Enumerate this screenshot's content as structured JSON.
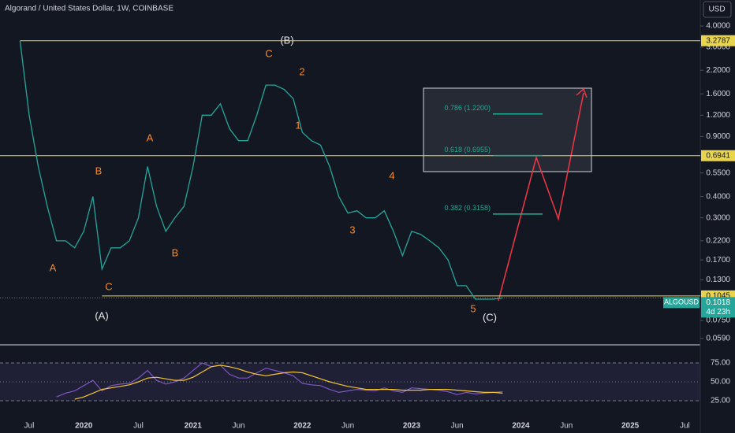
{
  "header": {
    "title": "Algorand / United States Dollar, 1W, COINBASE",
    "currency": "USD",
    "countdown": "4d 23h"
  },
  "annotations": [
    "(B)",
    "C",
    "2",
    "1",
    "A",
    "B",
    "A",
    "B",
    "C",
    "(A)",
    "4",
    "3",
    "5",
    "(C)"
  ],
  "fib_levels": [
    {
      "label": "0.786 (1.2200)",
      "price": 1.22
    },
    {
      "label": "0.618 (0.6955)",
      "price": 0.6955
    },
    {
      "label": "0.382 (0.3158)",
      "price": 0.3158
    }
  ],
  "chart_data": [
    {
      "type": "line",
      "log_scale": true,
      "grid": false,
      "series": [
        {
          "name": "ALGOUSD",
          "color": "#26a69a",
          "values": [
            3.28,
            1.2,
            0.6,
            0.35,
            0.22,
            0.22,
            0.2,
            0.25,
            0.4,
            0.15,
            0.2,
            0.2,
            0.22,
            0.3,
            0.6,
            0.35,
            0.25,
            0.3,
            0.35,
            0.6,
            1.2,
            1.2,
            1.4,
            1.0,
            0.85,
            0.85,
            1.2,
            1.8,
            1.8,
            1.7,
            1.5,
            0.95,
            0.85,
            0.8,
            0.6,
            0.4,
            0.32,
            0.33,
            0.3,
            0.3,
            0.33,
            0.25,
            0.18,
            0.25,
            0.24,
            0.22,
            0.2,
            0.17,
            0.12,
            0.12,
            0.1,
            0.1,
            0.1,
            0.1018
          ]
        }
      ],
      "levels": [
        3.2787,
        0.6941,
        0.1045
      ],
      "level_color": "#e8d44d",
      "xlim": [
        -2.2,
        74.7
      ],
      "xticks": [
        {
          "value": 1,
          "label": "Jul"
        },
        {
          "value": 7,
          "label": "2020"
        },
        {
          "value": 13,
          "label": "Jul"
        },
        {
          "value": 19,
          "label": "2021"
        },
        {
          "value": 24,
          "label": "Jun"
        },
        {
          "value": 31,
          "label": "2022"
        },
        {
          "value": 36,
          "label": "Jun"
        },
        {
          "value": 43,
          "label": "2023"
        },
        {
          "value": 48,
          "label": "Jun"
        },
        {
          "value": 55,
          "label": "2024"
        },
        {
          "value": 60,
          "label": "Jun"
        },
        {
          "value": 67,
          "label": "2025"
        },
        {
          "value": 73,
          "label": "Jul"
        }
      ],
      "ylim": [
        0.054,
        5.68
      ],
      "yticks": [
        {
          "value": 4,
          "label": "4.0000"
        },
        {
          "value": 3,
          "label": "3.0000"
        },
        {
          "value": 2.2,
          "label": "2.2000"
        },
        {
          "value": 1.6,
          "label": "1.6000"
        },
        {
          "value": 1.2,
          "label": "1.2000"
        },
        {
          "value": 0.9,
          "label": "0.9000"
        },
        {
          "value": 0.55,
          "label": "0.5500"
        },
        {
          "value": 0.4,
          "label": "0.4000"
        },
        {
          "value": 0.3,
          "label": "0.3000"
        },
        {
          "value": 0.22,
          "label": "0.2200"
        },
        {
          "value": 0.17,
          "label": "0.1700"
        },
        {
          "value": 0.13,
          "label": "0.1300"
        },
        {
          "value": 0.075,
          "label": "0.0750"
        },
        {
          "value": 0.059,
          "label": "0.0590"
        }
      ]
    },
    {
      "type": "line",
      "xlim": [
        -2.2,
        74.7
      ],
      "ylim": [
        3.1,
        96.9
      ],
      "yticks": [
        {
          "value": 75,
          "label": "75.00"
        },
        {
          "value": 50,
          "label": "50.00"
        },
        {
          "value": 25,
          "label": "25.00"
        }
      ],
      "series": [
        {
          "color": "#7e57c2",
          "values": [
            null,
            null,
            null,
            null,
            30,
            35,
            38,
            45,
            52,
            38,
            45,
            47,
            48,
            55,
            65,
            52,
            47,
            50,
            55,
            65,
            75,
            70,
            72,
            60,
            55,
            55,
            62,
            68,
            65,
            62,
            58,
            48,
            46,
            45,
            40,
            36,
            38,
            40,
            39,
            38,
            42,
            38,
            36,
            42,
            41,
            40,
            39,
            37,
            33,
            36,
            34,
            35,
            36,
            37
          ]
        },
        {
          "color": "#f7c531",
          "values": [
            null,
            null,
            null,
            null,
            null,
            null,
            27,
            30,
            35,
            40,
            42,
            44,
            46,
            50,
            55,
            56,
            54,
            52,
            52,
            56,
            63,
            70,
            72,
            70,
            67,
            63,
            60,
            58,
            60,
            62,
            63,
            62,
            58,
            54,
            50,
            47,
            44,
            42,
            40,
            40,
            40,
            40,
            39,
            39,
            39,
            40,
            40,
            40,
            39,
            38,
            37,
            36,
            36,
            35
          ]
        }
      ]
    }
  ]
}
